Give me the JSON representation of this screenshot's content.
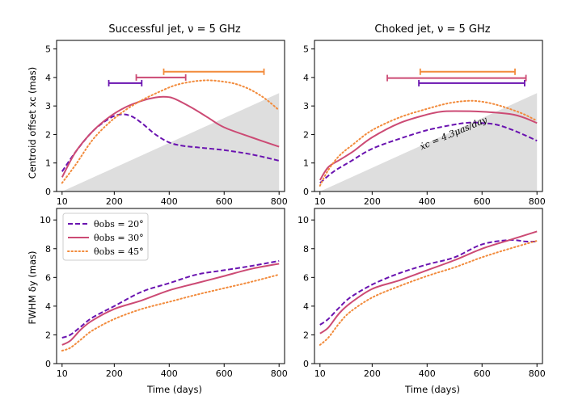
{
  "colors": {
    "deg20": "#6a13b0",
    "deg30": "#cc4a74",
    "deg45": "#f28b3c",
    "shade": "#dedede"
  },
  "legend": [
    {
      "key": "deg20",
      "label": "θobs = 20°",
      "style": "dashed"
    },
    {
      "key": "deg30",
      "label": "θobs = 30°",
      "style": "solid"
    },
    {
      "key": "deg45",
      "label": "θobs = 45°",
      "style": "dotted"
    }
  ],
  "chart_data": [
    {
      "type": "line",
      "title": "Successful jet, ν = 5 GHz",
      "xlabel": "",
      "ylabel": "Centroid offset xc (mas)",
      "xlim": [
        -10,
        820
      ],
      "ylim": [
        0,
        5.3
      ],
      "xticks": [
        10,
        200,
        400,
        600,
        800
      ],
      "yticks": [
        0,
        1,
        2,
        3,
        4,
        5
      ],
      "shaded_region": {
        "x": [
          10,
          800
        ],
        "y_start": 0,
        "y_end": 3.45
      },
      "series": [
        {
          "key": "deg20",
          "x": [
            10,
            60,
            120,
            180,
            220,
            260,
            300,
            350,
            400,
            450,
            500,
            600,
            700,
            800
          ],
          "y": [
            0.7,
            1.4,
            2.1,
            2.55,
            2.7,
            2.65,
            2.4,
            2.0,
            1.72,
            1.6,
            1.55,
            1.45,
            1.3,
            1.08
          ]
        },
        {
          "key": "deg30",
          "x": [
            10,
            60,
            120,
            180,
            240,
            300,
            350,
            390,
            420,
            480,
            540,
            600,
            700,
            800
          ],
          "y": [
            0.5,
            1.4,
            2.1,
            2.6,
            2.95,
            3.18,
            3.3,
            3.32,
            3.25,
            2.95,
            2.6,
            2.25,
            1.9,
            1.57
          ]
        },
        {
          "key": "deg45",
          "x": [
            10,
            60,
            120,
            180,
            240,
            300,
            360,
            420,
            480,
            540,
            600,
            650,
            700,
            750,
            800
          ],
          "y": [
            0.3,
            0.95,
            1.8,
            2.4,
            2.85,
            3.2,
            3.48,
            3.72,
            3.85,
            3.9,
            3.85,
            3.75,
            3.55,
            3.25,
            2.85
          ]
        }
      ],
      "error_bars": [
        {
          "key": "deg20",
          "y": 3.8,
          "x": [
            180,
            300
          ]
        },
        {
          "key": "deg30",
          "y": 4.0,
          "x": [
            280,
            460
          ]
        },
        {
          "key": "deg45",
          "y": 4.2,
          "x": [
            380,
            745
          ]
        }
      ]
    },
    {
      "type": "line",
      "title": "Choked jet, ν = 5 GHz",
      "xlabel": "",
      "ylabel": "",
      "xlim": [
        -10,
        820
      ],
      "ylim": [
        0,
        5.3
      ],
      "xticks": [
        10,
        200,
        400,
        600,
        800
      ],
      "yticks": [
        0,
        1,
        2,
        3,
        4,
        5
      ],
      "shaded_region": {
        "x": [
          10,
          800
        ],
        "y_start": 0,
        "y_end": 3.45
      },
      "annotation": "ẋc = 4.3μas/day",
      "series": [
        {
          "key": "deg20",
          "x": [
            10,
            60,
            120,
            200,
            300,
            400,
            500,
            560,
            600,
            650,
            700,
            750,
            800
          ],
          "y": [
            0.3,
            0.7,
            1.05,
            1.5,
            1.85,
            2.15,
            2.35,
            2.42,
            2.4,
            2.35,
            2.2,
            2.0,
            1.78
          ]
        },
        {
          "key": "deg30",
          "x": [
            10,
            40,
            80,
            130,
            200,
            300,
            400,
            450,
            500,
            600,
            700,
            750,
            800
          ],
          "y": [
            0.4,
            0.85,
            1.1,
            1.4,
            1.9,
            2.4,
            2.7,
            2.8,
            2.82,
            2.8,
            2.72,
            2.6,
            2.4
          ]
        },
        {
          "key": "deg45",
          "x": [
            10,
            40,
            80,
            130,
            200,
            300,
            400,
            480,
            550,
            600,
            650,
            700,
            750,
            800
          ],
          "y": [
            0.2,
            0.75,
            1.25,
            1.65,
            2.15,
            2.6,
            2.9,
            3.1,
            3.18,
            3.15,
            3.05,
            2.9,
            2.72,
            2.48
          ]
        }
      ],
      "error_bars": [
        {
          "key": "deg20",
          "y": 3.8,
          "x": [
            370,
            755
          ]
        },
        {
          "key": "deg30",
          "y": 3.98,
          "x": [
            255,
            760
          ]
        },
        {
          "key": "deg45",
          "y": 4.2,
          "x": [
            375,
            720
          ]
        }
      ]
    },
    {
      "type": "line",
      "title": "",
      "xlabel": "Time (days)",
      "ylabel": "FWHM δy (mas)",
      "xlim": [
        -10,
        820
      ],
      "ylim": [
        0,
        10.8
      ],
      "xticks": [
        10,
        200,
        400,
        600,
        800
      ],
      "yticks": [
        0,
        2,
        4,
        6,
        8,
        10
      ],
      "series": [
        {
          "key": "deg20",
          "x": [
            10,
            40,
            80,
            120,
            200,
            300,
            400,
            500,
            600,
            700,
            800
          ],
          "y": [
            1.8,
            2.0,
            2.6,
            3.2,
            4.0,
            5.0,
            5.6,
            6.2,
            6.5,
            6.8,
            7.15
          ]
        },
        {
          "key": "deg30",
          "x": [
            10,
            40,
            80,
            120,
            200,
            300,
            400,
            500,
            600,
            700,
            800
          ],
          "y": [
            1.3,
            1.6,
            2.4,
            3.0,
            3.8,
            4.4,
            5.1,
            5.6,
            6.1,
            6.6,
            6.95
          ]
        },
        {
          "key": "deg45",
          "x": [
            10,
            40,
            80,
            120,
            200,
            300,
            400,
            500,
            600,
            700,
            800
          ],
          "y": [
            0.9,
            1.1,
            1.7,
            2.3,
            3.1,
            3.8,
            4.3,
            4.8,
            5.25,
            5.7,
            6.2
          ]
        }
      ]
    },
    {
      "type": "line",
      "title": "",
      "xlabel": "Time (days)",
      "ylabel": "",
      "xlim": [
        -10,
        820
      ],
      "ylim": [
        0,
        10.8
      ],
      "xticks": [
        10,
        200,
        400,
        600,
        800
      ],
      "yticks": [
        0,
        2,
        4,
        6,
        8,
        10
      ],
      "series": [
        {
          "key": "deg20",
          "x": [
            10,
            40,
            80,
            120,
            200,
            300,
            400,
            500,
            600,
            700,
            760,
            800
          ],
          "y": [
            2.7,
            3.1,
            3.9,
            4.6,
            5.5,
            6.3,
            6.9,
            7.4,
            8.3,
            8.6,
            8.5,
            8.5
          ]
        },
        {
          "key": "deg30",
          "x": [
            10,
            40,
            80,
            120,
            200,
            300,
            400,
            500,
            600,
            700,
            800
          ],
          "y": [
            2.1,
            2.5,
            3.5,
            4.2,
            5.2,
            5.8,
            6.5,
            7.2,
            8.0,
            8.6,
            9.2
          ]
        },
        {
          "key": "deg45",
          "x": [
            10,
            40,
            80,
            120,
            200,
            300,
            400,
            500,
            600,
            700,
            800
          ],
          "y": [
            1.3,
            1.8,
            2.8,
            3.6,
            4.6,
            5.4,
            6.1,
            6.7,
            7.4,
            8.0,
            8.55
          ]
        }
      ]
    }
  ]
}
